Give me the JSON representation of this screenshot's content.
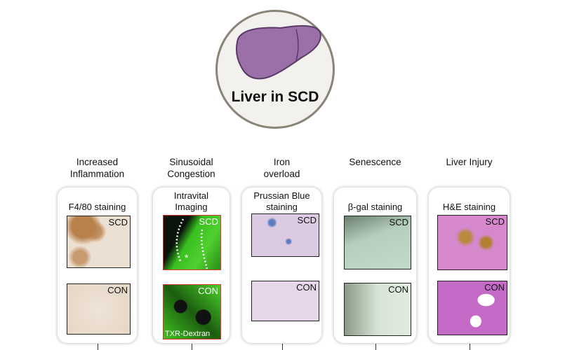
{
  "center": {
    "title": "Liver in SCD",
    "icon": "liver-icon",
    "liver_color": "#9b6fa8"
  },
  "panels": [
    {
      "heading": "Increased\nInflammation",
      "method": "F4/80 staining",
      "top_label": "SCD",
      "bottom_label": "CON",
      "stain": "brown"
    },
    {
      "heading": "Sinusoidal\nCongestion",
      "method": "Intravital\nImaging",
      "top_label": "SCD",
      "bottom_label": "CON",
      "caption": "TXR-Dextran",
      "stain": "green"
    },
    {
      "heading": "Iron\noverload",
      "method": "Prussian Blue\nstaining",
      "top_label": "SCD",
      "bottom_label": "CON",
      "stain": "blue"
    },
    {
      "heading": "Senescence",
      "method": "β-gal staining",
      "top_label": "SCD",
      "bottom_label": "CON",
      "stain": "teal"
    },
    {
      "heading": "Liver Injury",
      "method": "H&E staining",
      "top_label": "SCD",
      "bottom_label": "CON",
      "stain": "pink"
    }
  ]
}
